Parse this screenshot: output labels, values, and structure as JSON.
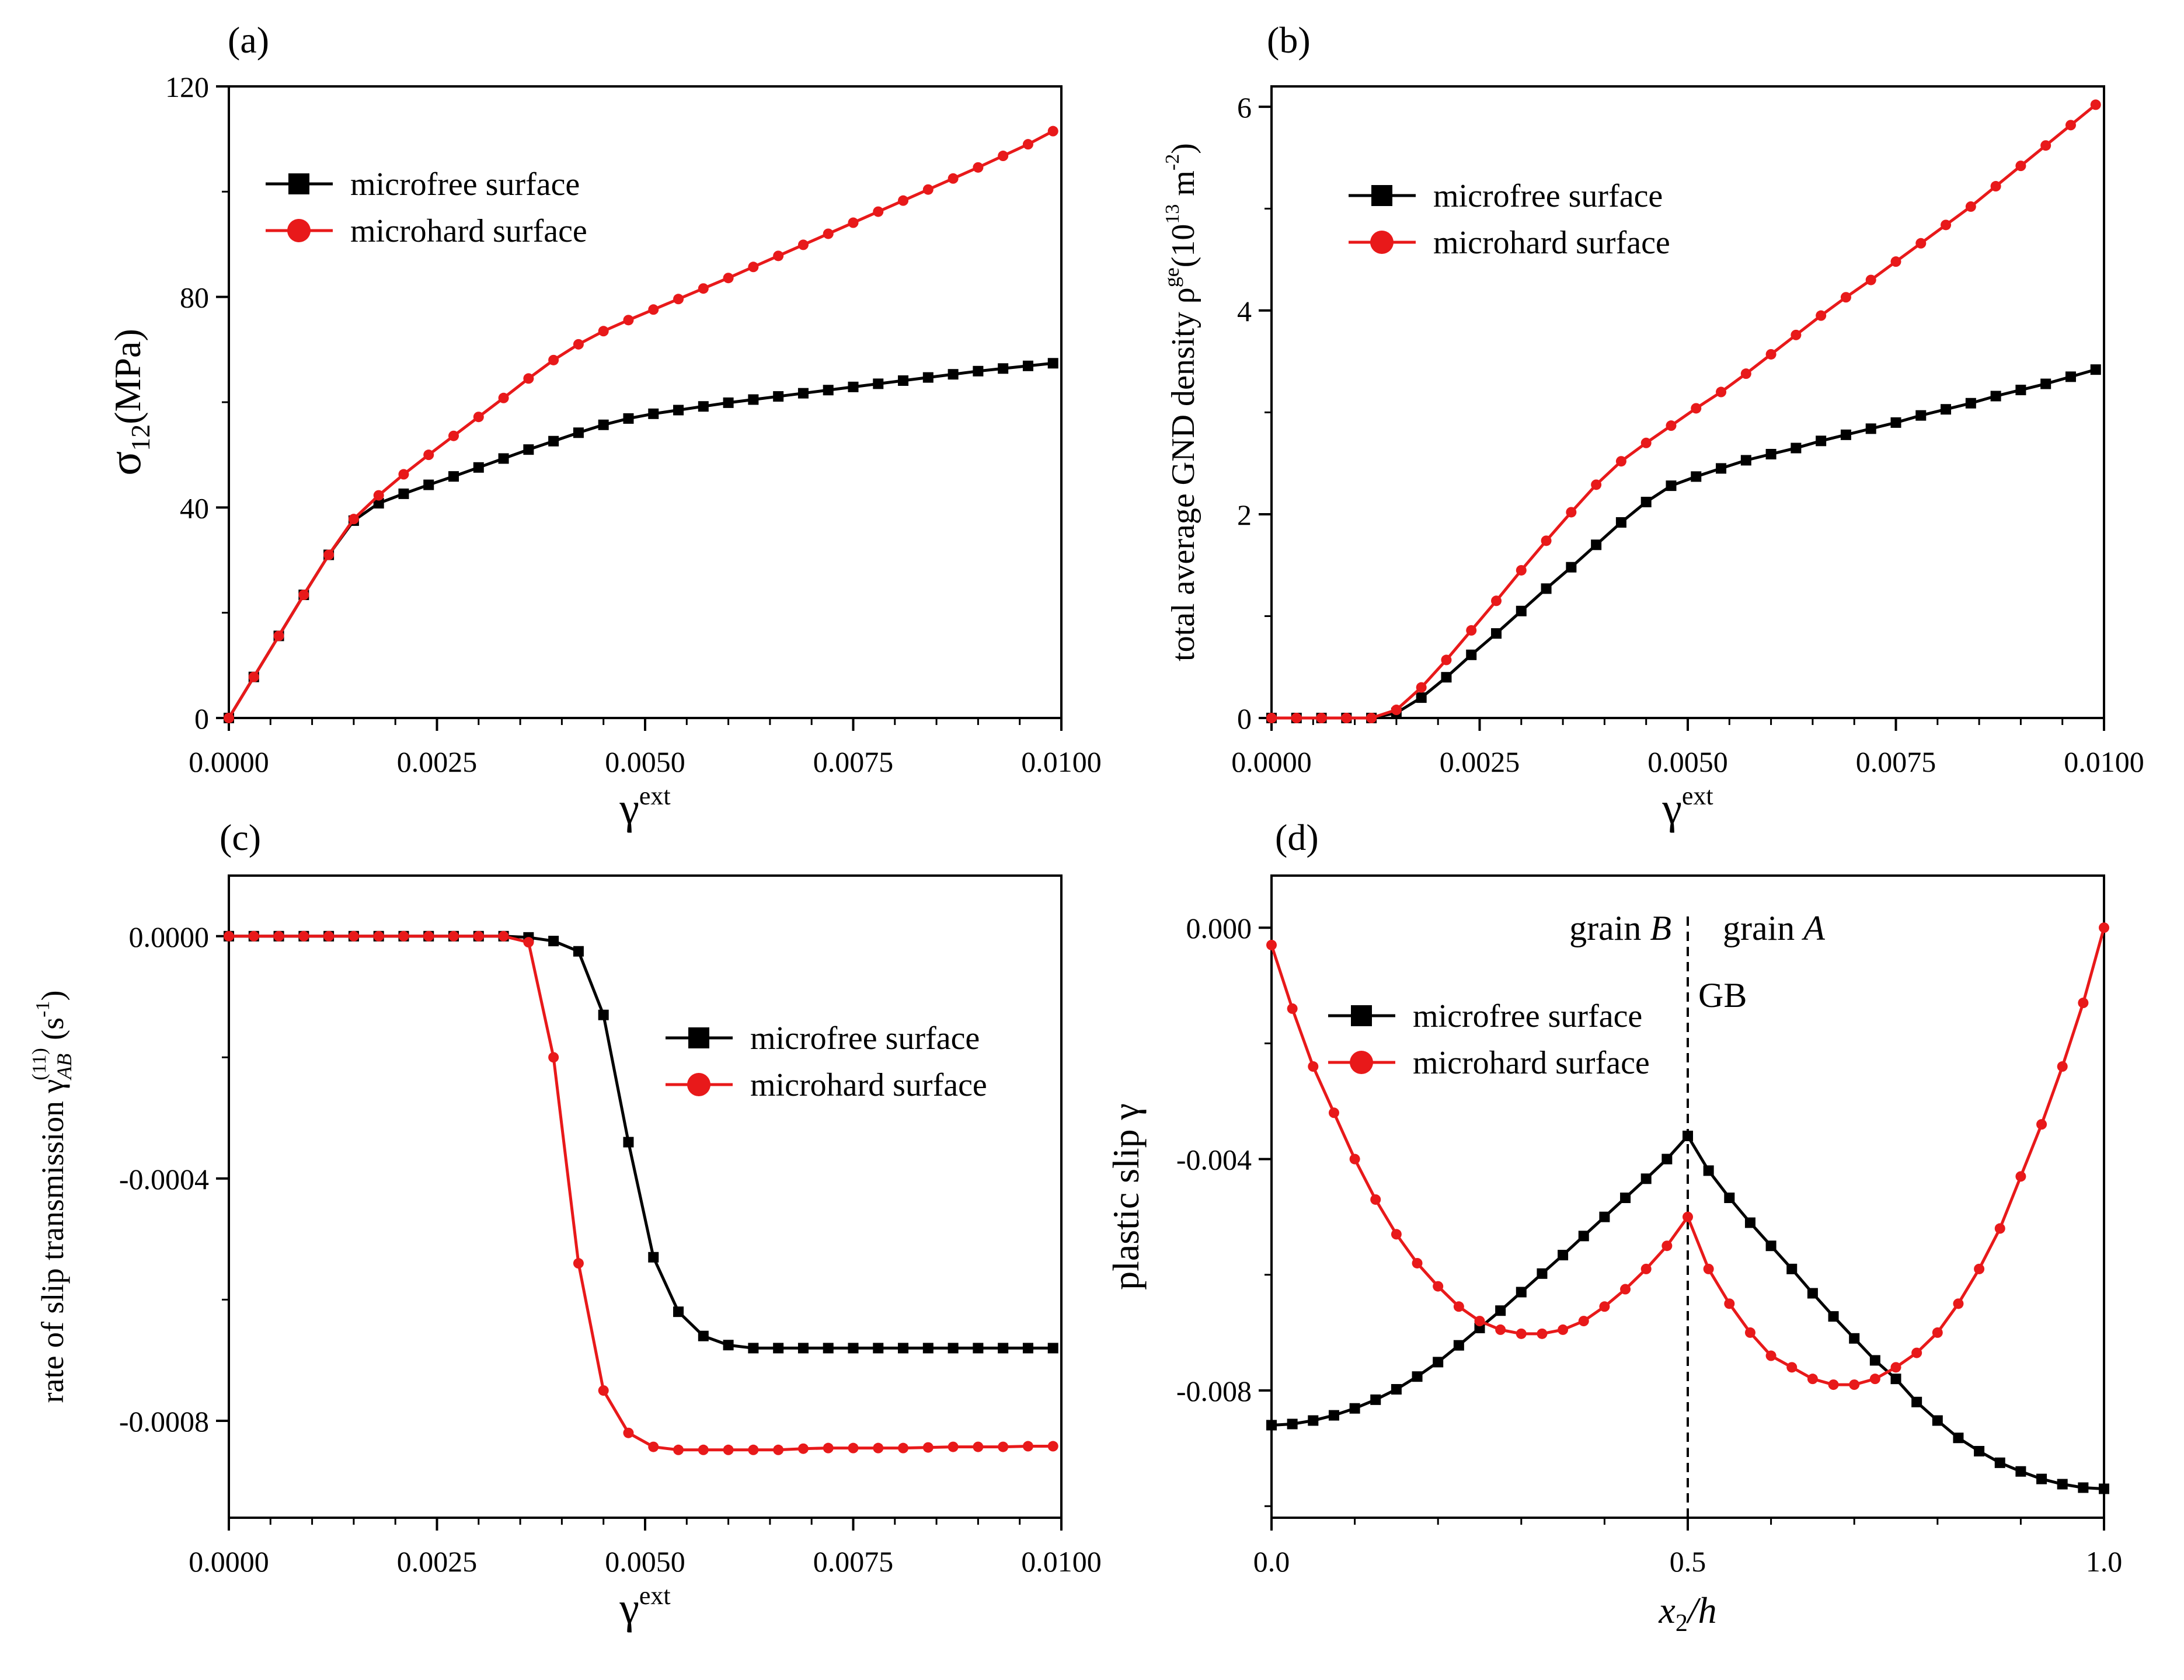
{
  "figure": {
    "legend_black": "microfree surface",
    "legend_red": "microhard surface",
    "colors": {
      "black": "#000000",
      "red": "#e8191a"
    }
  },
  "chart_data": [
    {
      "id": "a",
      "panel_label": "(a)",
      "type": "line",
      "xlabel": "γ",
      "xlabel_sup": "ext",
      "ylabel": "σ",
      "ylabel_sub": "12",
      "ylabel_tail": "(MPa)",
      "xlim": [
        0,
        0.01
      ],
      "ylim": [
        0,
        120
      ],
      "xticks": [
        0,
        0.0025,
        0.005,
        0.0075,
        0.01
      ],
      "xtick_labels": [
        "0.0000",
        "0.0025",
        "0.0050",
        "0.0075",
        "0.0100"
      ],
      "yticks": [
        0,
        40,
        80,
        120
      ],
      "ytick_labels": [
        "0",
        "40",
        "80",
        "120"
      ],
      "series": [
        {
          "name": "microfree surface",
          "color": "#000000",
          "marker": "square",
          "x": [
            0,
            0.0003,
            0.0006,
            0.0009,
            0.0012,
            0.0015,
            0.0018,
            0.0021,
            0.0024,
            0.0027,
            0.003,
            0.0033,
            0.0036,
            0.0039,
            0.0042,
            0.0045,
            0.0048,
            0.0051,
            0.0054,
            0.0057,
            0.006,
            0.0063,
            0.0066,
            0.0069,
            0.0072,
            0.0075,
            0.0078,
            0.0081,
            0.0084,
            0.0087,
            0.009,
            0.0093,
            0.0096,
            0.0099
          ],
          "y": [
            0,
            7.8,
            15.6,
            23.4,
            31.0,
            37.5,
            40.8,
            42.6,
            44.3,
            45.9,
            47.6,
            49.3,
            51.0,
            52.6,
            54.2,
            55.7,
            56.9,
            57.8,
            58.5,
            59.2,
            59.9,
            60.5,
            61.1,
            61.7,
            62.3,
            62.9,
            63.5,
            64.1,
            64.7,
            65.3,
            65.9,
            66.4,
            66.9,
            67.4
          ]
        },
        {
          "name": "microhard surface",
          "color": "#e8191a",
          "marker": "circle",
          "x": [
            0,
            0.0003,
            0.0006,
            0.0009,
            0.0012,
            0.0015,
            0.0018,
            0.0021,
            0.0024,
            0.0027,
            0.003,
            0.0033,
            0.0036,
            0.0039,
            0.0042,
            0.0045,
            0.0048,
            0.0051,
            0.0054,
            0.0057,
            0.006,
            0.0063,
            0.0066,
            0.0069,
            0.0072,
            0.0075,
            0.0078,
            0.0081,
            0.0084,
            0.0087,
            0.009,
            0.0093,
            0.0096,
            0.0099
          ],
          "y": [
            0,
            7.8,
            15.6,
            23.4,
            31.0,
            37.8,
            42.3,
            46.3,
            50.0,
            53.6,
            57.2,
            60.8,
            64.5,
            68.0,
            71.0,
            73.5,
            75.6,
            77.6,
            79.6,
            81.6,
            83.6,
            85.7,
            87.8,
            89.9,
            92.0,
            94.1,
            96.2,
            98.3,
            100.4,
            102.5,
            104.6,
            106.8,
            109.0,
            111.5
          ]
        }
      ]
    },
    {
      "id": "b",
      "panel_label": "(b)",
      "type": "line",
      "xlabel": "γ",
      "xlabel_sup": "ext",
      "ylabel": "total average GND density ρ",
      "ylabel_sup": "ge",
      "ylabel_tail": "(10",
      "ylabel_sup2": "13",
      "ylabel_tail2": " m",
      "ylabel_sup3": "-2",
      "ylabel_end": ")",
      "xlim": [
        0,
        0.01
      ],
      "ylim": [
        0,
        6.2
      ],
      "xticks": [
        0,
        0.0025,
        0.005,
        0.0075,
        0.01
      ],
      "xtick_labels": [
        "0.0000",
        "0.0025",
        "0.0050",
        "0.0075",
        "0.0100"
      ],
      "yticks": [
        0,
        2,
        4,
        6
      ],
      "ytick_labels": [
        "0",
        "2",
        "4",
        "6"
      ],
      "series": [
        {
          "name": "microfree surface",
          "color": "#000000",
          "marker": "square",
          "x": [
            0,
            0.0003,
            0.0006,
            0.0009,
            0.0012,
            0.0015,
            0.0018,
            0.0021,
            0.0024,
            0.0027,
            0.003,
            0.0033,
            0.0036,
            0.0039,
            0.0042,
            0.0045,
            0.0048,
            0.0051,
            0.0054,
            0.0057,
            0.006,
            0.0063,
            0.0066,
            0.0069,
            0.0072,
            0.0075,
            0.0078,
            0.0081,
            0.0084,
            0.0087,
            0.009,
            0.0093,
            0.0096,
            0.0099
          ],
          "y": [
            0,
            0,
            0,
            0,
            0,
            0.05,
            0.2,
            0.4,
            0.62,
            0.83,
            1.05,
            1.27,
            1.48,
            1.7,
            1.92,
            2.12,
            2.28,
            2.37,
            2.45,
            2.53,
            2.59,
            2.65,
            2.72,
            2.78,
            2.84,
            2.9,
            2.97,
            3.03,
            3.09,
            3.16,
            3.22,
            3.28,
            3.35,
            3.42
          ]
        },
        {
          "name": "microhard surface",
          "color": "#e8191a",
          "marker": "circle",
          "x": [
            0,
            0.0003,
            0.0006,
            0.0009,
            0.0012,
            0.0015,
            0.0018,
            0.0021,
            0.0024,
            0.0027,
            0.003,
            0.0033,
            0.0036,
            0.0039,
            0.0042,
            0.0045,
            0.0048,
            0.0051,
            0.0054,
            0.0057,
            0.006,
            0.0063,
            0.0066,
            0.0069,
            0.0072,
            0.0075,
            0.0078,
            0.0081,
            0.0084,
            0.0087,
            0.009,
            0.0093,
            0.0096,
            0.0099
          ],
          "y": [
            0,
            0,
            0,
            0,
            0,
            0.08,
            0.3,
            0.57,
            0.86,
            1.15,
            1.45,
            1.74,
            2.02,
            2.29,
            2.52,
            2.7,
            2.87,
            3.04,
            3.2,
            3.38,
            3.57,
            3.76,
            3.95,
            4.13,
            4.3,
            4.48,
            4.66,
            4.84,
            5.02,
            5.22,
            5.42,
            5.62,
            5.82,
            6.02
          ]
        }
      ]
    },
    {
      "id": "c",
      "panel_label": "(c)",
      "type": "line",
      "xlabel": "γ",
      "xlabel_sup": "ext",
      "ylabel": "rate of slip transmission γ",
      "ylabel_sub": "AB",
      "ylabel_sup": "(11)",
      "ylabel_tail": " (s",
      "ylabel_sup2": "-1",
      "ylabel_end": ")",
      "xlim": [
        0,
        0.01
      ],
      "ylim": [
        -0.00096,
        0.0001
      ],
      "xticks": [
        0,
        0.0025,
        0.005,
        0.0075,
        0.01
      ],
      "xtick_labels": [
        "0.0000",
        "0.0025",
        "0.0050",
        "0.0075",
        "0.0100"
      ],
      "yticks": [
        0,
        -0.0004,
        -0.0008
      ],
      "ytick_labels": [
        "0.0000",
        "-0.0004",
        "-0.0008"
      ],
      "series": [
        {
          "name": "microfree surface",
          "color": "#000000",
          "marker": "square",
          "x": [
            0,
            0.0003,
            0.0006,
            0.0009,
            0.0012,
            0.0015,
            0.0018,
            0.0021,
            0.0024,
            0.0027,
            0.003,
            0.0033,
            0.0036,
            0.0039,
            0.0042,
            0.0045,
            0.0048,
            0.0051,
            0.0054,
            0.0057,
            0.006,
            0.0063,
            0.0066,
            0.0069,
            0.0072,
            0.0075,
            0.0078,
            0.0081,
            0.0084,
            0.0087,
            0.009,
            0.0093,
            0.0096,
            0.0099
          ],
          "y": [
            0,
            0,
            0,
            0,
            0,
            0,
            0,
            0,
            0,
            0,
            0,
            0,
            -2e-06,
            -8e-06,
            -2.5e-05,
            -0.00013,
            -0.00034,
            -0.00053,
            -0.00062,
            -0.00066,
            -0.000675,
            -0.00068,
            -0.00068,
            -0.00068,
            -0.00068,
            -0.00068,
            -0.00068,
            -0.00068,
            -0.00068,
            -0.00068,
            -0.00068,
            -0.00068,
            -0.00068,
            -0.00068
          ]
        },
        {
          "name": "microhard surface",
          "color": "#e8191a",
          "marker": "circle",
          "x": [
            0,
            0.0003,
            0.0006,
            0.0009,
            0.0012,
            0.0015,
            0.0018,
            0.0021,
            0.0024,
            0.0027,
            0.003,
            0.0033,
            0.0036,
            0.0039,
            0.0042,
            0.0045,
            0.0048,
            0.0051,
            0.0054,
            0.0057,
            0.006,
            0.0063,
            0.0066,
            0.0069,
            0.0072,
            0.0075,
            0.0078,
            0.0081,
            0.0084,
            0.0087,
            0.009,
            0.0093,
            0.0096,
            0.0099
          ],
          "y": [
            0,
            0,
            0,
            0,
            0,
            0,
            0,
            0,
            0,
            0,
            0,
            0,
            -1e-05,
            -0.0002,
            -0.00054,
            -0.00075,
            -0.00082,
            -0.000843,
            -0.000848,
            -0.000848,
            -0.000848,
            -0.000848,
            -0.000848,
            -0.000846,
            -0.000845,
            -0.000845,
            -0.000845,
            -0.000845,
            -0.000844,
            -0.000843,
            -0.000843,
            -0.000843,
            -0.000842,
            -0.000842
          ]
        }
      ]
    },
    {
      "id": "d",
      "panel_label": "(d)",
      "type": "line",
      "xlabel": "x",
      "xlabel_sub": "2",
      "xlabel_tail": "/h",
      "ylabel": "plastic slip γ",
      "xlim": [
        0,
        1
      ],
      "ylim": [
        -0.0102,
        0.0009
      ],
      "xticks": [
        0,
        0.5,
        1
      ],
      "xtick_labels": [
        "0.0",
        "0.5",
        "1.0"
      ],
      "yticks": [
        0,
        -0.004,
        -0.008
      ],
      "ytick_labels": [
        "0.000",
        "-0.004",
        "-0.008"
      ],
      "annotations": {
        "grain_b": "grain",
        "grain_b_it": "B",
        "grain_a": "grain",
        "grain_a_it": "A",
        "gb": "GB",
        "gb_x": 0.5
      },
      "series": [
        {
          "name": "microfree surface",
          "color": "#000000",
          "marker": "square",
          "x": [
            0,
            0.025,
            0.05,
            0.075,
            0.1,
            0.125,
            0.15,
            0.175,
            0.2,
            0.225,
            0.25,
            0.275,
            0.3,
            0.325,
            0.35,
            0.375,
            0.4,
            0.425,
            0.45,
            0.475,
            0.5,
            0.525,
            0.55,
            0.575,
            0.6,
            0.625,
            0.65,
            0.675,
            0.7,
            0.725,
            0.75,
            0.775,
            0.8,
            0.825,
            0.85,
            0.875,
            0.9,
            0.925,
            0.95,
            0.975,
            1.0
          ],
          "y": [
            -0.0086,
            -0.00858,
            -0.00852,
            -0.00843,
            -0.00831,
            -0.00816,
            -0.00798,
            -0.00776,
            -0.00751,
            -0.00722,
            -0.00692,
            -0.00662,
            -0.0063,
            -0.00598,
            -0.00566,
            -0.00533,
            -0.005,
            -0.00467,
            -0.00434,
            -0.004,
            -0.0036,
            -0.0042,
            -0.00467,
            -0.0051,
            -0.0055,
            -0.0059,
            -0.00632,
            -0.00672,
            -0.0071,
            -0.00748,
            -0.0078,
            -0.0082,
            -0.00852,
            -0.00882,
            -0.00905,
            -0.00925,
            -0.0094,
            -0.00953,
            -0.00962,
            -0.00968,
            -0.0097
          ]
        },
        {
          "name": "microhard surface",
          "color": "#e8191a",
          "marker": "circle",
          "x": [
            0,
            0.025,
            0.05,
            0.075,
            0.1,
            0.125,
            0.15,
            0.175,
            0.2,
            0.225,
            0.25,
            0.275,
            0.3,
            0.325,
            0.35,
            0.375,
            0.4,
            0.425,
            0.45,
            0.475,
            0.5,
            0.525,
            0.55,
            0.575,
            0.6,
            0.625,
            0.65,
            0.675,
            0.7,
            0.725,
            0.75,
            0.775,
            0.8,
            0.825,
            0.85,
            0.875,
            0.9,
            0.925,
            0.95,
            0.975,
            1.0
          ],
          "y": [
            -0.0003,
            -0.0014,
            -0.0024,
            -0.0032,
            -0.004,
            -0.0047,
            -0.0053,
            -0.0058,
            -0.0062,
            -0.00655,
            -0.0068,
            -0.00695,
            -0.00702,
            -0.00702,
            -0.00695,
            -0.0068,
            -0.00655,
            -0.00625,
            -0.0059,
            -0.0055,
            -0.005,
            -0.0059,
            -0.0065,
            -0.007,
            -0.0074,
            -0.0076,
            -0.0078,
            -0.0079,
            -0.0079,
            -0.0078,
            -0.0076,
            -0.00735,
            -0.007,
            -0.0065,
            -0.0059,
            -0.0052,
            -0.0043,
            -0.0034,
            -0.0024,
            -0.0013,
            0.0
          ]
        }
      ]
    }
  ]
}
